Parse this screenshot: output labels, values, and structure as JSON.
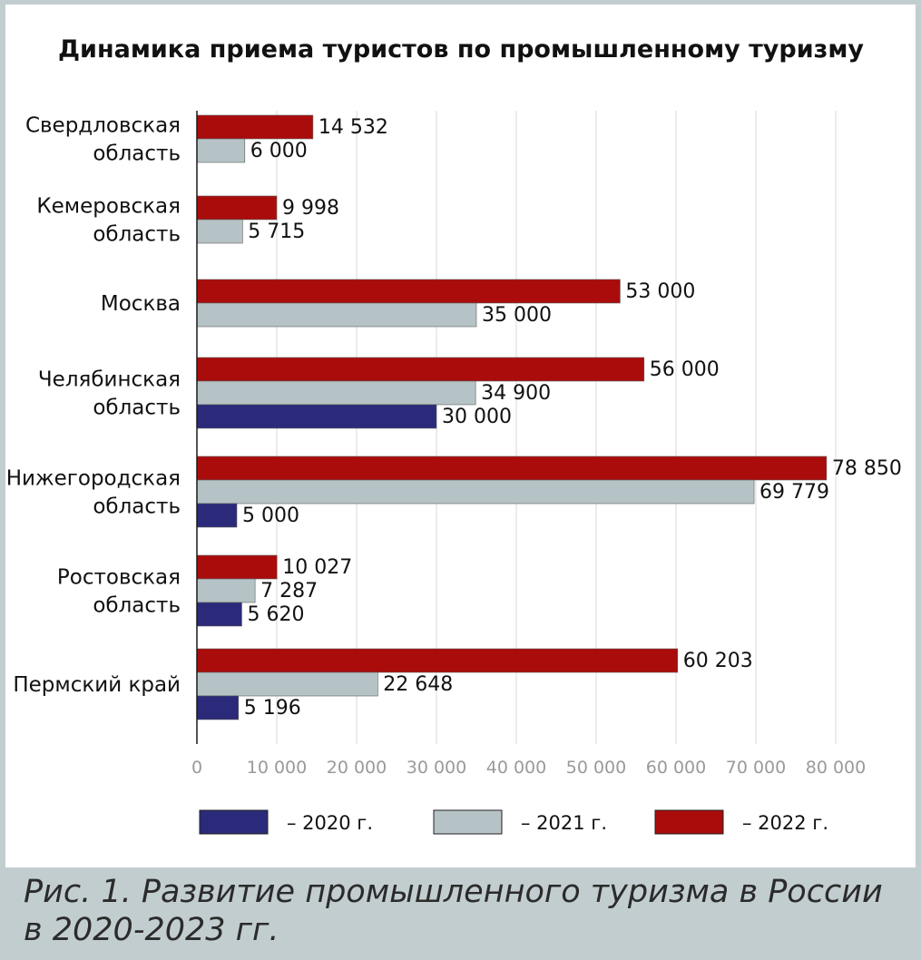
{
  "caption": "Рис. 1. Развитие промышленного туризма в России в 2020-2023 гг.",
  "chart_data": {
    "type": "bar",
    "orientation": "horizontal",
    "title": "Динамика приема туристов по промышленному туризму",
    "xlabel": "",
    "ylabel": "",
    "categories": [
      [
        "Свердловская",
        "область"
      ],
      [
        "Кемеровская",
        "область"
      ],
      [
        "Москва"
      ],
      [
        "Челябинская",
        "область"
      ],
      [
        "Нижегородская",
        "область"
      ],
      [
        "Ростовская",
        "область"
      ],
      [
        "Пермский край"
      ]
    ],
    "series": [
      {
        "name": "– 2022 г.",
        "color": "#aa0c0c",
        "values": [
          14532,
          9998,
          53000,
          56000,
          78850,
          10027,
          60203
        ],
        "labels": [
          "14 532",
          "9 998",
          "53 000",
          "56 000",
          "78 850",
          "10 027",
          "60 203"
        ]
      },
      {
        "name": "– 2021 г.",
        "color": "#b6c3c6",
        "values": [
          6000,
          5715,
          35000,
          34900,
          69779,
          7287,
          22648
        ],
        "labels": [
          "6 000",
          "5 715",
          "35 000",
          "34 900",
          "69 779",
          "7 287",
          "22 648"
        ]
      },
      {
        "name": "– 2020 г.",
        "color": "#2b2a7a",
        "values": [
          null,
          null,
          null,
          30000,
          5000,
          5620,
          5196
        ],
        "labels": [
          null,
          null,
          null,
          "30 000",
          "5 000",
          "5 620",
          "5 196"
        ]
      }
    ],
    "xlim": [
      0,
      80000
    ],
    "xticks": [
      0,
      10000,
      20000,
      30000,
      40000,
      50000,
      60000,
      70000,
      80000
    ],
    "xtick_labels": [
      "0",
      "10 000",
      "20 000",
      "30 000",
      "40 000",
      "50 000",
      "60 000",
      "70 000",
      "80 000"
    ],
    "grid": true,
    "legend_position": "bottom",
    "legend_order": [
      "– 2020 г.",
      "– 2021 г.",
      "– 2022 г."
    ]
  }
}
